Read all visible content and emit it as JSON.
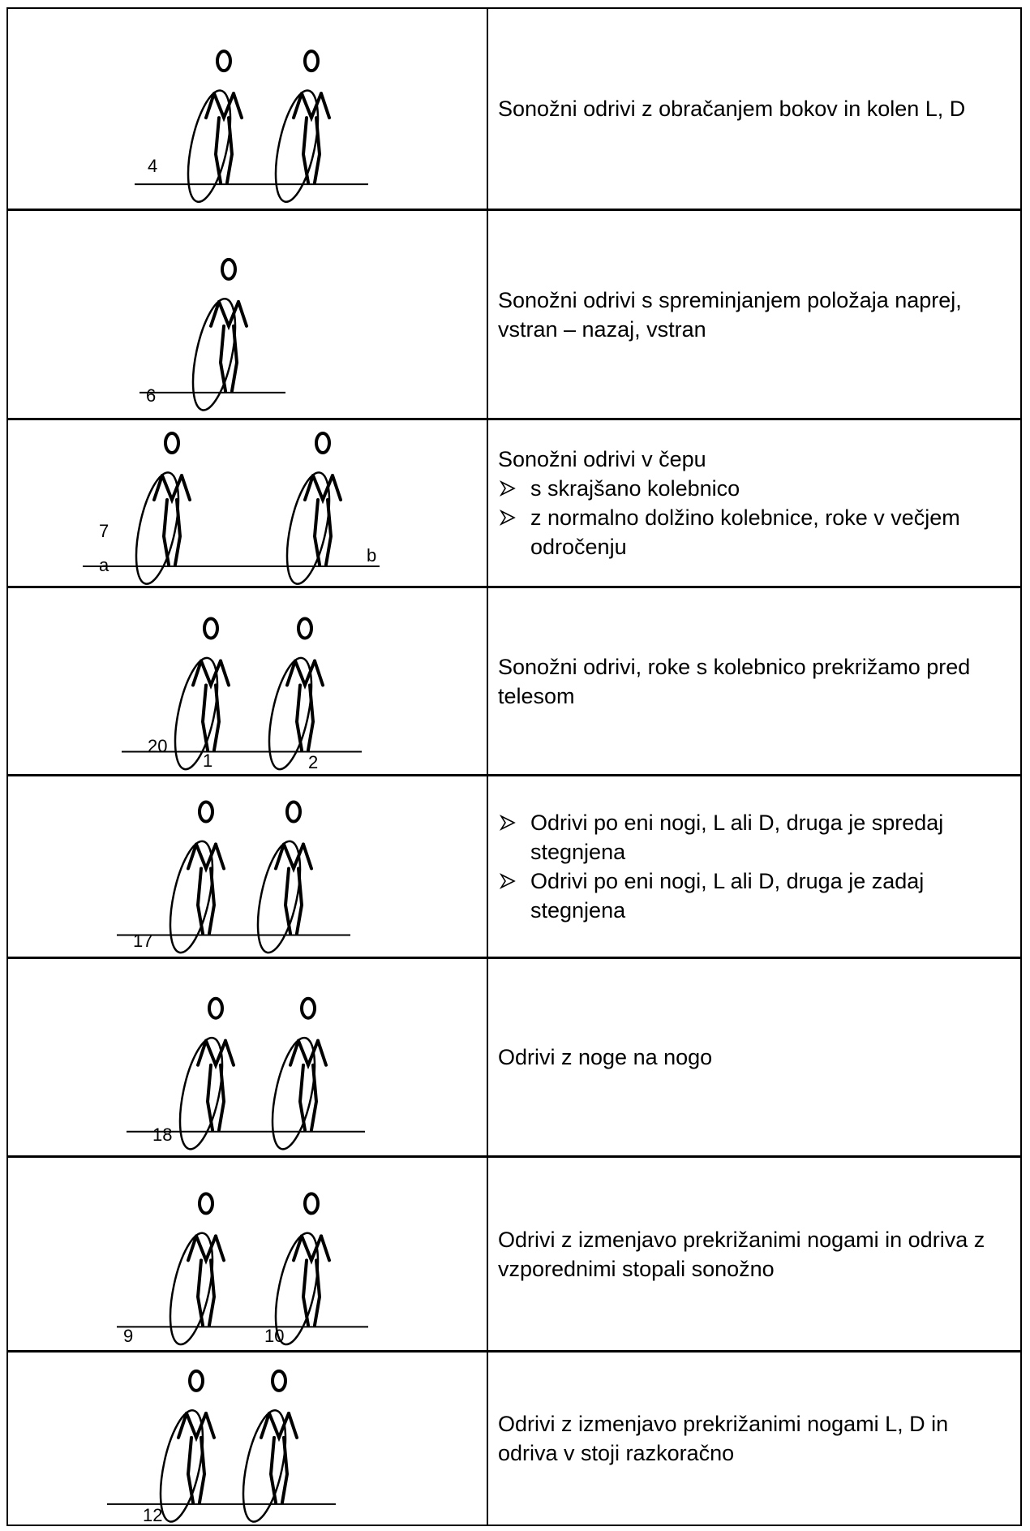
{
  "table": {
    "rows": [
      {
        "figure_labels": [
          "4"
        ],
        "text": "Sonožni odrivi z obračanjem bokov in kolen L, D"
      },
      {
        "figure_labels": [
          "6"
        ],
        "text": "Sonožni odrivi s spreminjanjem položaja naprej, vstran – nazaj, vstran"
      },
      {
        "figure_labels": [
          "7",
          "a",
          "b"
        ],
        "text": "Sonožni odrivi v čepu",
        "bullets": [
          "s skrajšano kolebnico",
          "z normalno dolžino kolebnice, roke v večjem odročenju"
        ]
      },
      {
        "figure_labels": [
          "20",
          "1",
          "2"
        ],
        "text": "Sonožni odrivi, roke s kolebnico prekrižamo pred telesom"
      },
      {
        "figure_labels": [
          "17"
        ],
        "bullets": [
          "Odrivi po eni nogi, L ali D, druga je spredaj stegnjena",
          "Odrivi po eni nogi, L ali D, druga je zadaj stegnjena"
        ]
      },
      {
        "figure_labels": [
          "18"
        ],
        "text": "Odrivi z noge na nogo"
      },
      {
        "figure_labels": [
          "9",
          "10"
        ],
        "text": "Odrivi z izmenjavo prekrižanimi nogami in odriva z vzporednimi stopali sonožno"
      },
      {
        "figure_labels": [
          "12"
        ],
        "text": "Odrivi z izmenjavo prekrižanimi nogami L, D in odriva v stoji razkoračno"
      }
    ]
  }
}
